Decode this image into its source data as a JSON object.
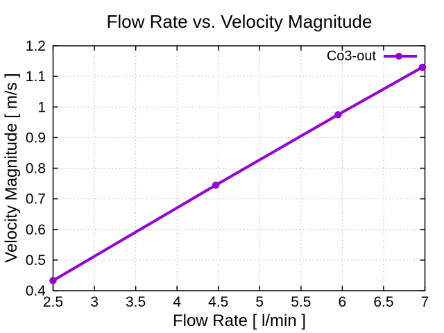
{
  "chart_data": {
    "type": "line",
    "title": "Flow Rate vs. Velocity Magnitude",
    "xlabel": "Flow Rate [ l/min ]",
    "ylabel": "Velocity Magnitude [ m/s ]",
    "xlim": [
      2.5,
      7
    ],
    "ylim": [
      0.4,
      1.2
    ],
    "x_ticks": [
      2.5,
      3,
      3.5,
      4,
      4.5,
      5,
      5.5,
      6,
      6.5,
      7
    ],
    "x_tick_labels": [
      "2.5",
      "3",
      "3.5",
      "4",
      "4.5",
      "5",
      "5.5",
      "6",
      "6.5",
      "7"
    ],
    "y_ticks": [
      0.4,
      0.5,
      0.6,
      0.7,
      0.8,
      0.9,
      1,
      1.1,
      1.2
    ],
    "y_tick_labels": [
      "0.4",
      "0.5",
      "0.6",
      "0.7",
      "0.8",
      "0.9",
      "1",
      "1.1",
      "1.2"
    ],
    "grid": true,
    "legend_position": "top-right",
    "series": [
      {
        "name": "Co3-out",
        "color": "#9400d3",
        "marker": "filled-circle",
        "x": [
          2.5,
          4.47,
          5.95,
          6.97
        ],
        "y": [
          0.433,
          0.745,
          0.975,
          1.13
        ]
      }
    ],
    "colors": {
      "line": "#9400d3",
      "grid": "#b3b3b3",
      "border": "#000000",
      "text": "#000000",
      "background": "#ffffff"
    }
  }
}
